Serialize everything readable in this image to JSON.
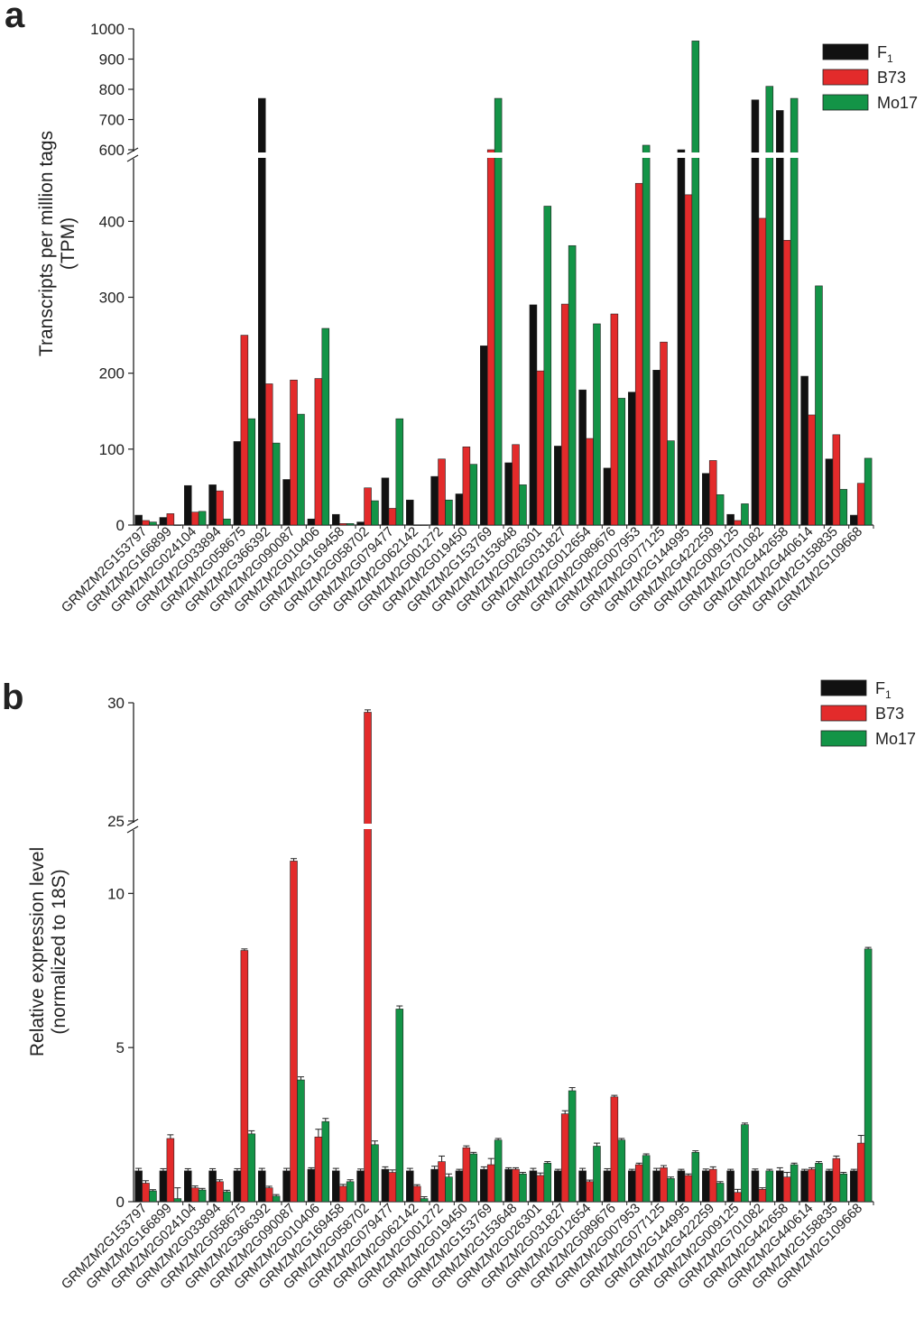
{
  "figure": {
    "categories": [
      "GRMZM2G153797",
      "GRMZM2G166899",
      "GRMZM2G024104",
      "GRMZM2G033894",
      "GRMZM2G058675",
      "GRMZM2G366392",
      "GRMZM2G090087",
      "GRMZM2G010406",
      "GRMZM2G169458",
      "GRMZM2G058702",
      "GRMZM2G079477",
      "GRMZM2G062142",
      "GRMZM2G001272",
      "GRMZM2G019450",
      "GRMZM2G153769",
      "GRMZM2G153648",
      "GRMZM2G026301",
      "GRMZM2G031827",
      "GRMZM2G012654",
      "GRMZM2G089676",
      "GRMZM2G007953",
      "GRMZM2G077125",
      "GRMZM2G144995",
      "GRMZM2G422259",
      "GRMZM2G009125",
      "GRMZM2G701082",
      "GRMZM2G442658",
      "GRMZM2G440614",
      "GRMZM2G158835",
      "GRMZM2G109668"
    ],
    "series_colors": {
      "F1": "#111111",
      "B73": "#e32b2b",
      "Mo17": "#139447"
    }
  },
  "chart_data": [
    {
      "panel": "a",
      "type": "bar",
      "ylabel": [
        "Transcripts per million tags",
        "(TPM)"
      ],
      "ylim": [
        0,
        1000
      ],
      "axis_break": [
        480,
        600
      ],
      "yticks": [
        0,
        100,
        200,
        300,
        400,
        600,
        700,
        800,
        900,
        1000
      ],
      "legend": {
        "position": "top-right",
        "entries": [
          {
            "main": "F",
            "sub": "1"
          },
          {
            "main": "B73"
          },
          {
            "main": "Mo17"
          }
        ]
      },
      "series": [
        {
          "name": "F1",
          "values": [
            13,
            10,
            52,
            53,
            110,
            770,
            60,
            8,
            14,
            4,
            62,
            33,
            64,
            41,
            236,
            82,
            290,
            104,
            178,
            75,
            175,
            204,
            590,
            68,
            14,
            765,
            730,
            196,
            87,
            13
          ]
        },
        {
          "name": "B73",
          "values": [
            6,
            15,
            17,
            45,
            250,
            186,
            191,
            193,
            2,
            49,
            22,
            0,
            87,
            103,
            600,
            106,
            203,
            291,
            114,
            278,
            450,
            241,
            435,
            85,
            6,
            404,
            375,
            145,
            119,
            55
          ]
        },
        {
          "name": "Mo17",
          "values": [
            4,
            0,
            18,
            8,
            140,
            108,
            146,
            259,
            2,
            32,
            140,
            0,
            33,
            80,
            770,
            53,
            420,
            368,
            265,
            167,
            615,
            111,
            960,
            40,
            28,
            810,
            770,
            315,
            47,
            88
          ]
        }
      ]
    },
    {
      "panel": "b",
      "type": "bar",
      "ylabel": [
        "Relative expression level",
        "(normalized to 18S)"
      ],
      "ylim": [
        0,
        30
      ],
      "axis_break": [
        12,
        25
      ],
      "yticks": [
        0,
        5,
        10,
        25,
        30
      ],
      "legend": {
        "position": "top-right",
        "entries": [
          {
            "main": "F",
            "sub": "1"
          },
          {
            "main": "B73"
          },
          {
            "main": "Mo17"
          }
        ]
      },
      "error_bars": true,
      "series": [
        {
          "name": "F1",
          "values": [
            1.0,
            1.0,
            1.0,
            1.0,
            1.0,
            1.0,
            1.0,
            1.05,
            1.0,
            1.0,
            1.05,
            1.0,
            1.05,
            1.0,
            1.05,
            1.05,
            1.0,
            1.0,
            1.0,
            1.0,
            1.0,
            1.0,
            1.0,
            1.0,
            1.0,
            1.0,
            1.0,
            1.0,
            1.0,
            1.0
          ],
          "errors": [
            0.08,
            0.07,
            0.07,
            0.07,
            0.07,
            0.08,
            0.08,
            0.05,
            0.08,
            0.06,
            0.08,
            0.08,
            0.1,
            0.05,
            0.08,
            0.05,
            0.08,
            0.05,
            0.08,
            0.07,
            0.05,
            0.08,
            0.05,
            0.06,
            0.05,
            0.06,
            0.1,
            0.05,
            0.05,
            0.05
          ]
        },
        {
          "name": "B73",
          "values": [
            0.6,
            2.05,
            0.45,
            0.65,
            8.15,
            0.45,
            11.05,
            2.1,
            0.5,
            29.6,
            0.95,
            0.5,
            1.3,
            1.75,
            1.2,
            1.05,
            0.85,
            2.85,
            0.65,
            3.4,
            1.2,
            1.1,
            0.85,
            1.05,
            0.3,
            0.4,
            0.8,
            1.05,
            1.4,
            1.9
          ],
          "errors": [
            0.08,
            0.12,
            0.06,
            0.06,
            0.05,
            0.05,
            0.08,
            0.25,
            0.06,
            0.1,
            0.08,
            0.05,
            0.18,
            0.06,
            0.2,
            0.05,
            0.08,
            0.1,
            0.05,
            0.05,
            0.05,
            0.07,
            0.05,
            0.08,
            0.1,
            0.05,
            0.15,
            0.05,
            0.08,
            0.25
          ]
        },
        {
          "name": "Mo17",
          "values": [
            0.35,
            0.1,
            0.38,
            0.32,
            2.2,
            0.18,
            3.95,
            2.6,
            0.65,
            1.85,
            6.25,
            0.1,
            0.8,
            1.55,
            2.0,
            0.9,
            1.25,
            3.6,
            1.8,
            2.0,
            1.5,
            0.75,
            1.6,
            0.6,
            2.5,
            1.0,
            1.2,
            1.25,
            0.9,
            8.2
          ],
          "errors": [
            0.04,
            0.35,
            0.05,
            0.05,
            0.1,
            0.05,
            0.1,
            0.1,
            0.06,
            0.12,
            0.1,
            0.06,
            0.1,
            0.05,
            0.05,
            0.05,
            0.05,
            0.1,
            0.1,
            0.05,
            0.05,
            0.05,
            0.05,
            0.05,
            0.05,
            0.05,
            0.05,
            0.05,
            0.05,
            0.05
          ]
        }
      ]
    }
  ]
}
